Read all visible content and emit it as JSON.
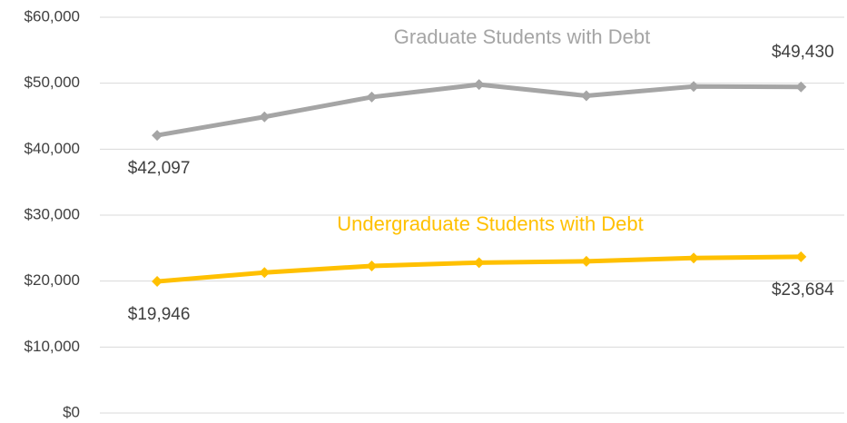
{
  "chart_data": {
    "type": "line",
    "categories": [
      null,
      null,
      null,
      null,
      null,
      null,
      null
    ],
    "series": [
      {
        "name": "Graduate Students with Debt",
        "color": "#a5a5a5",
        "values": [
          42097,
          44900,
          47900,
          49800,
          48100,
          49500,
          49430
        ],
        "value_labels": [
          "$42,097",
          null,
          null,
          null,
          null,
          null,
          "$49,430"
        ]
      },
      {
        "name": "Undergraduate Students with Debt",
        "color": "#ffc000",
        "values": [
          19946,
          21300,
          22300,
          22800,
          23000,
          23500,
          23684
        ],
        "value_labels": [
          "$19,946",
          null,
          null,
          null,
          null,
          null,
          "$23,684"
        ]
      }
    ],
    "ylim": [
      0,
      60000
    ],
    "yticks": [
      {
        "value": 0,
        "label": "$0"
      },
      {
        "value": 10000,
        "label": "$10,000"
      },
      {
        "value": 20000,
        "label": "$20,000"
      },
      {
        "value": 30000,
        "label": "$30,000"
      },
      {
        "value": 40000,
        "label": "$40,000"
      },
      {
        "value": 50000,
        "label": "$50,000"
      },
      {
        "value": 60000,
        "label": "$60,000"
      }
    ],
    "grid": true
  }
}
